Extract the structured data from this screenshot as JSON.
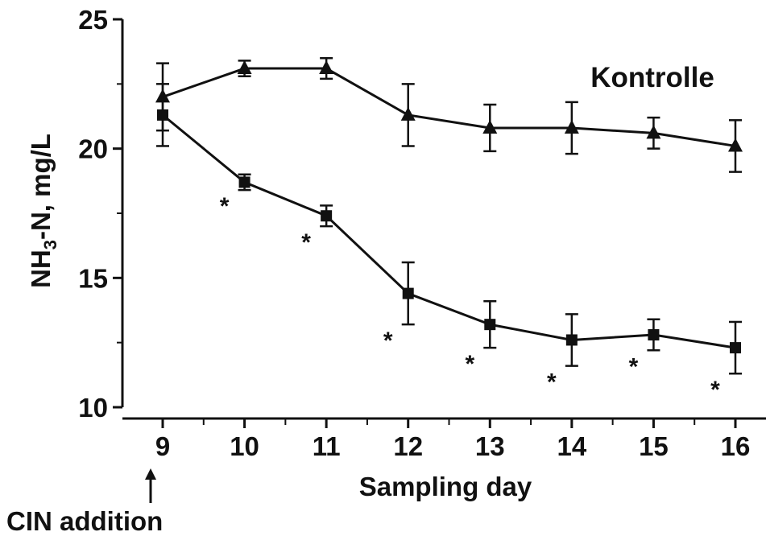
{
  "chart_data": {
    "type": "line",
    "title": "",
    "xlabel": "Sampling day",
    "ylabel_main": "NH",
    "ylabel_sub": "3",
    "ylabel_rest": "-N, mg/L",
    "xlim": [
      9,
      16
    ],
    "ylim": [
      10,
      25
    ],
    "x": [
      9,
      10,
      11,
      12,
      13,
      14,
      15,
      16
    ],
    "x_tick_labels": [
      "9",
      "10",
      "11",
      "12",
      "13",
      "14",
      "15",
      "16"
    ],
    "y_ticks": [
      10,
      15,
      20,
      25
    ],
    "y_tick_labels": [
      "10",
      "15",
      "20",
      "25"
    ],
    "grid": false,
    "series": [
      {
        "name": "Kontrolle",
        "marker": "triangle",
        "values": [
          22.0,
          23.1,
          23.1,
          21.3,
          20.8,
          20.8,
          20.6,
          20.1
        ],
        "errors": [
          1.3,
          0.3,
          0.4,
          1.2,
          0.9,
          1.0,
          0.6,
          1.0
        ]
      },
      {
        "name": "",
        "marker": "square",
        "values": [
          21.3,
          18.7,
          17.4,
          14.4,
          13.2,
          12.6,
          12.8,
          12.3
        ],
        "errors": [
          1.2,
          0.3,
          0.4,
          1.2,
          0.9,
          1.0,
          0.6,
          1.0
        ],
        "significance_marks": [
          "",
          "*",
          "*",
          "*",
          "*",
          "*",
          "*",
          "*"
        ]
      }
    ],
    "annotations": {
      "series_label": "Kontrolle",
      "arrow_label": "CIN addition",
      "arrow_x": 9
    }
  },
  "colors": {
    "ink": "#111111",
    "background": "#ffffff"
  }
}
